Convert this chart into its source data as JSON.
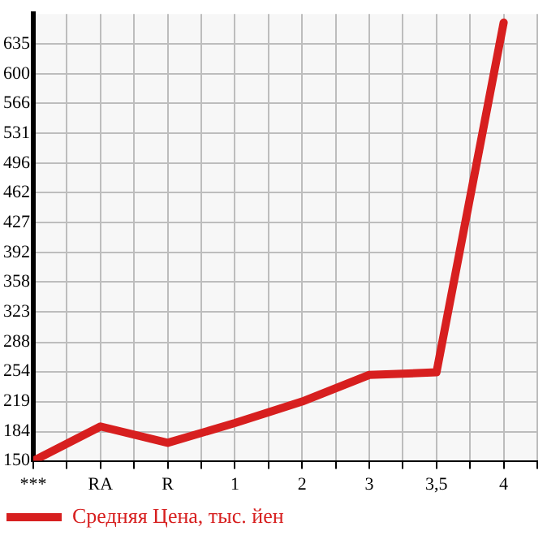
{
  "chart_data": {
    "type": "line",
    "categories": [
      "***",
      "RA",
      "R",
      "1",
      "2",
      "3",
      "3,5",
      "4"
    ],
    "series": [
      {
        "name": "Средняя Цена, тыс. йен",
        "color": "#d71f1f",
        "values": [
          150,
          190,
          171,
          194,
          219,
          250,
          253,
          660
        ]
      }
    ],
    "ylim": [
      150,
      670
    ],
    "yticks": [
      150,
      184,
      219,
      254,
      288,
      323,
      358,
      392,
      427,
      462,
      496,
      531,
      566,
      600,
      635
    ],
    "grid": true,
    "legend": "bottom left",
    "marker": "none",
    "line_style": "solid"
  }
}
